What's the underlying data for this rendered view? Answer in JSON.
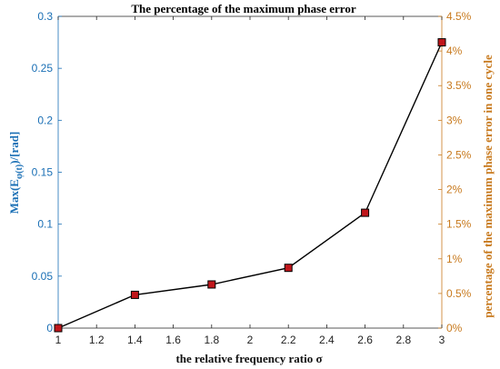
{
  "chart_data": {
    "type": "line",
    "title": "The percentage of the maximum phase error",
    "xlabel": "the relative frequency ratio σ",
    "ylabel_left": "Max(E_φ(t))/[rad]",
    "ylabel_right": "percentage of the maximum phase error in one cycle",
    "xlim": [
      1,
      3
    ],
    "ylim_left": [
      0,
      0.3
    ],
    "ylim_right": [
      0,
      4.5
    ],
    "x_ticks": [
      "1",
      "1.2",
      "1.4",
      "1.6",
      "1.8",
      "2",
      "2.2",
      "2.4",
      "2.6",
      "2.8",
      "3"
    ],
    "y_left_ticks": [
      "0",
      "0.05",
      "0.1",
      "0.15",
      "0.2",
      "0.25",
      "0.3"
    ],
    "y_right_ticks": [
      "0%",
      "0.5%",
      "1%",
      "1.5%",
      "2%",
      "2.5%",
      "3%",
      "3.5%",
      "4%",
      "4.5%"
    ],
    "grid": false,
    "series": [
      {
        "axis": "left",
        "x": [
          1.0,
          1.4,
          1.8,
          2.2,
          2.6,
          3.0
        ],
        "y": [
          0.0,
          0.032,
          0.042,
          0.058,
          0.111,
          0.275
        ],
        "line_color": "#000000",
        "marker_color": "#c0161b"
      }
    ],
    "colors": {
      "left_axis": "#1a6fb5",
      "right_axis": "#c87a1e"
    }
  }
}
